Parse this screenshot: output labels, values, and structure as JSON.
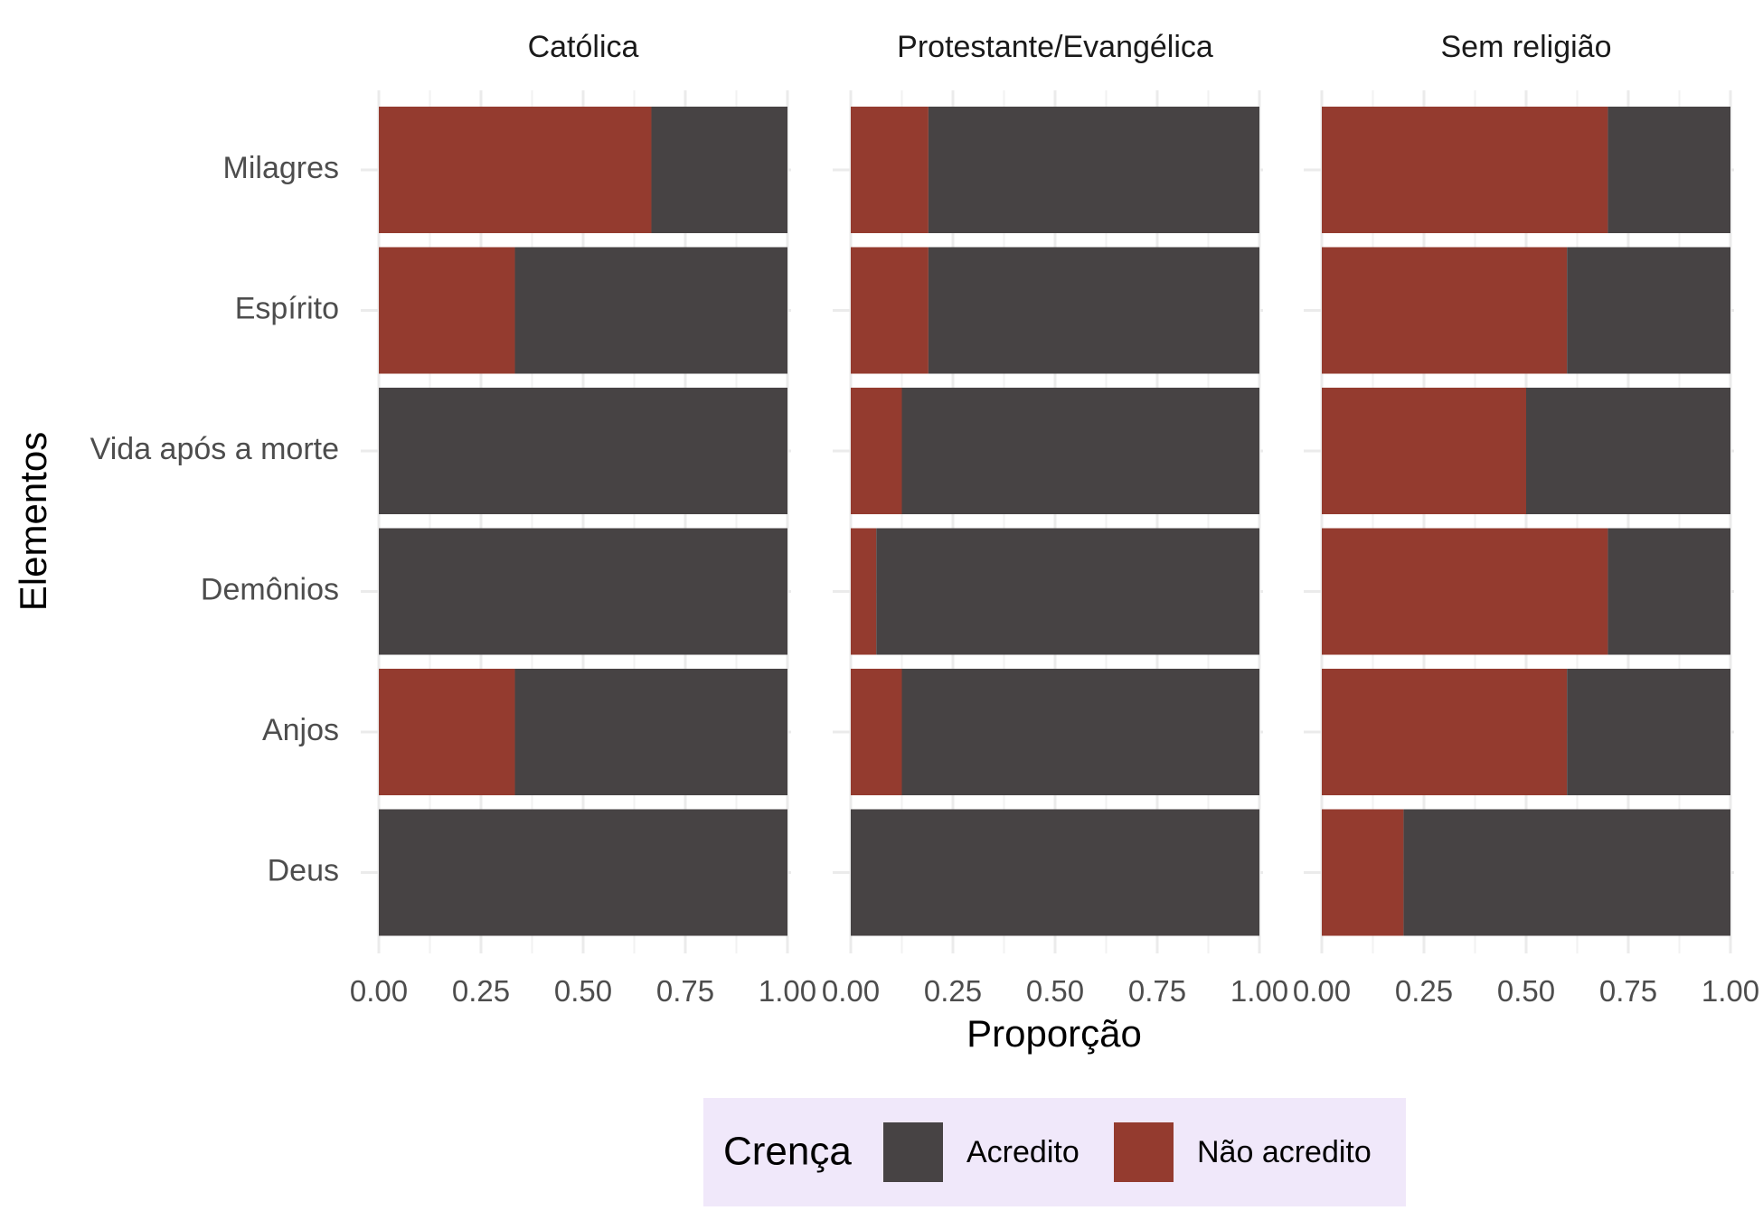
{
  "chart_data": {
    "type": "bar",
    "orientation": "horizontal",
    "stacked": "proportion",
    "xlabel": "Proporção",
    "ylabel": "Elementos",
    "xlim": [
      0,
      1
    ],
    "x_ticks": [
      "0.00",
      "0.25",
      "0.50",
      "0.75",
      "1.00"
    ],
    "grid": true,
    "categories": [
      "Milagres",
      "Espírito",
      "Vida após a morte",
      "Demônios",
      "Anjos",
      "Deus"
    ],
    "legend": {
      "title": "Crença",
      "position": "bottom",
      "background": "#f0e8fa",
      "entries": [
        {
          "label": "Acredito",
          "color": "#474344"
        },
        {
          "label": "Não acredito",
          "color": "#943b2f"
        }
      ]
    },
    "facets": [
      {
        "title": "Católica",
        "series": [
          {
            "name": "Não acredito",
            "values": [
              0.667,
              0.333,
              0.0,
              0.0,
              0.333,
              0.0
            ]
          },
          {
            "name": "Acredito",
            "values": [
              0.333,
              0.667,
              1.0,
              1.0,
              0.667,
              1.0
            ]
          }
        ]
      },
      {
        "title": "Protestante/Evangélica",
        "series": [
          {
            "name": "Não acredito",
            "values": [
              0.19,
              0.19,
              0.125,
              0.0625,
              0.125,
              0.0
            ]
          },
          {
            "name": "Acredito",
            "values": [
              0.81,
              0.81,
              0.875,
              0.9375,
              0.875,
              1.0
            ]
          }
        ]
      },
      {
        "title": "Sem religião",
        "series": [
          {
            "name": "Não acredito",
            "values": [
              0.7,
              0.6,
              0.5,
              0.7,
              0.6,
              0.2
            ]
          },
          {
            "name": "Acredito",
            "values": [
              0.3,
              0.4,
              0.5,
              0.3,
              0.4,
              0.8
            ]
          }
        ]
      }
    ]
  }
}
